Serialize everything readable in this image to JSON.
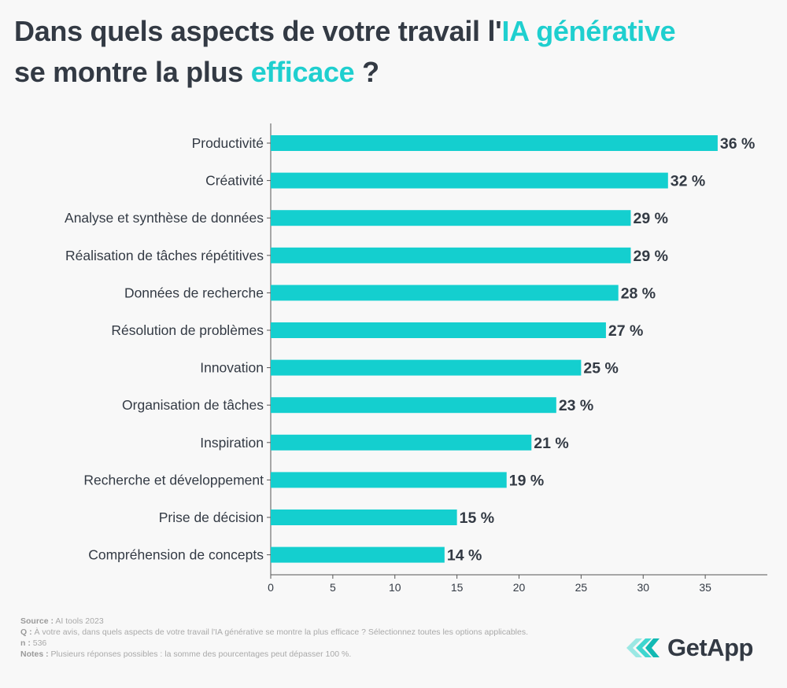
{
  "title": {
    "part1": "Dans quels aspects de votre travail l'",
    "highlight1": "IA générative",
    "part2": "se montre la plus ",
    "highlight2": "efficace",
    "part3": " ?"
  },
  "colors": {
    "bar": "#14cfcf",
    "accent": "#1fcfcf",
    "text": "#333a44"
  },
  "chart_data": {
    "type": "bar",
    "orientation": "horizontal",
    "categories": [
      "Productivité",
      "Créativité",
      "Analyse et synthèse de données",
      "Réalisation de tâches répétitives",
      "Données de recherche",
      "Résolution de problèmes",
      "Innovation",
      "Organisation de tâches",
      "Inspiration",
      "Recherche et développement",
      "Prise de décision",
      "Compréhension de concepts"
    ],
    "values": [
      36,
      32,
      29,
      29,
      28,
      27,
      25,
      23,
      21,
      19,
      15,
      14
    ],
    "data_labels": [
      "36 %",
      "32 %",
      "29 %",
      "29 %",
      "28 %",
      "27 %",
      "25 %",
      "23 %",
      "21 %",
      "19 %",
      "15 %",
      "14 %"
    ],
    "xlim": [
      0,
      40
    ],
    "xticks": [
      "0",
      "5",
      "10",
      "15",
      "20",
      "25",
      "30",
      "35"
    ],
    "grid": false
  },
  "footer": {
    "source_label": "Source :",
    "source": "AI tools 2023",
    "q_label": "Q :",
    "question": "À votre avis, dans quels aspects de votre travail l'IA générative se montre la plus efficace ?  Sélectionnez toutes les options applicables.",
    "n_label": "n :",
    "n": "536",
    "notes_label": "Notes :",
    "notes": "Plusieurs réponses possibles : la somme des pourcentages peut dépasser 100 %."
  },
  "logo": {
    "text": "GetApp"
  }
}
